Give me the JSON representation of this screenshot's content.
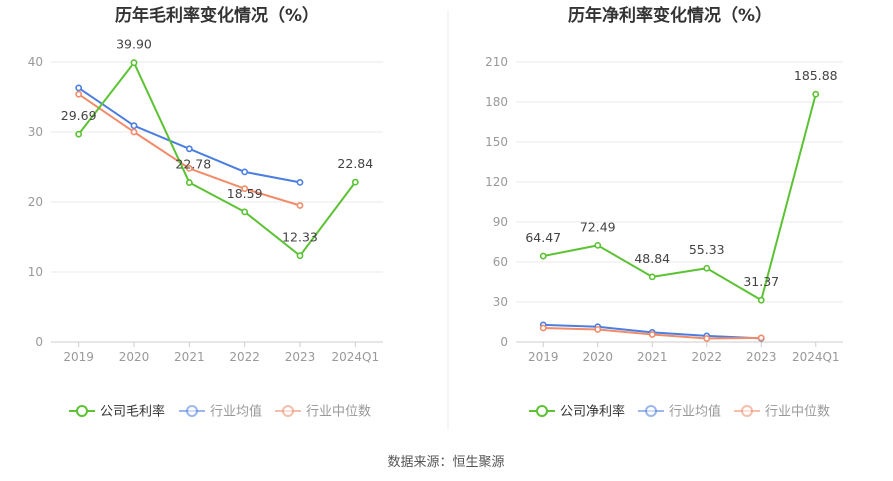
{
  "source": "数据来源：恒生聚源",
  "chart_data": [
    {
      "type": "line",
      "title": "历年毛利率变化情况（%）",
      "categories": [
        "2019",
        "2020",
        "2021",
        "2022",
        "2023",
        "2024Q1"
      ],
      "ylim": [
        0,
        40
      ],
      "yticks": [
        0,
        10,
        20,
        30,
        40
      ],
      "grid": true,
      "legend_position": "bottom",
      "series": [
        {
          "name": "公司毛利率",
          "color": "#5cc234",
          "values": [
            29.69,
            39.9,
            22.78,
            18.59,
            12.33,
            22.84
          ],
          "labels": [
            "29.69",
            "39.90",
            "22.78",
            "18.59",
            "12.33",
            "22.84"
          ]
        },
        {
          "name": "行业均值",
          "color": "#4b7ee0",
          "values": [
            36.3,
            30.9,
            27.6,
            24.3,
            22.8,
            null
          ]
        },
        {
          "name": "行业中位数",
          "color": "#f08c69",
          "values": [
            35.4,
            30.0,
            24.8,
            21.9,
            19.5,
            null
          ]
        }
      ]
    },
    {
      "type": "line",
      "title": "历年净利率变化情况（%）",
      "categories": [
        "2019",
        "2020",
        "2021",
        "2022",
        "2023",
        "2024Q1"
      ],
      "ylim": [
        0,
        210
      ],
      "yticks": [
        0,
        30,
        60,
        90,
        120,
        150,
        180,
        210
      ],
      "grid": true,
      "legend_position": "bottom",
      "series": [
        {
          "name": "公司净利率",
          "color": "#5cc234",
          "values": [
            64.47,
            72.49,
            48.84,
            55.33,
            31.37,
            185.88
          ],
          "labels": [
            "64.47",
            "72.49",
            "48.84",
            "55.33",
            "31.37",
            "185.88"
          ]
        },
        {
          "name": "行业均值",
          "color": "#4b7ee0",
          "values": [
            12.8,
            11.4,
            7.2,
            4.6,
            2.7,
            null
          ]
        },
        {
          "name": "行业中位数",
          "color": "#f08c69",
          "values": [
            10.5,
            9.4,
            5.6,
            2.6,
            3.1,
            null
          ]
        }
      ]
    }
  ]
}
